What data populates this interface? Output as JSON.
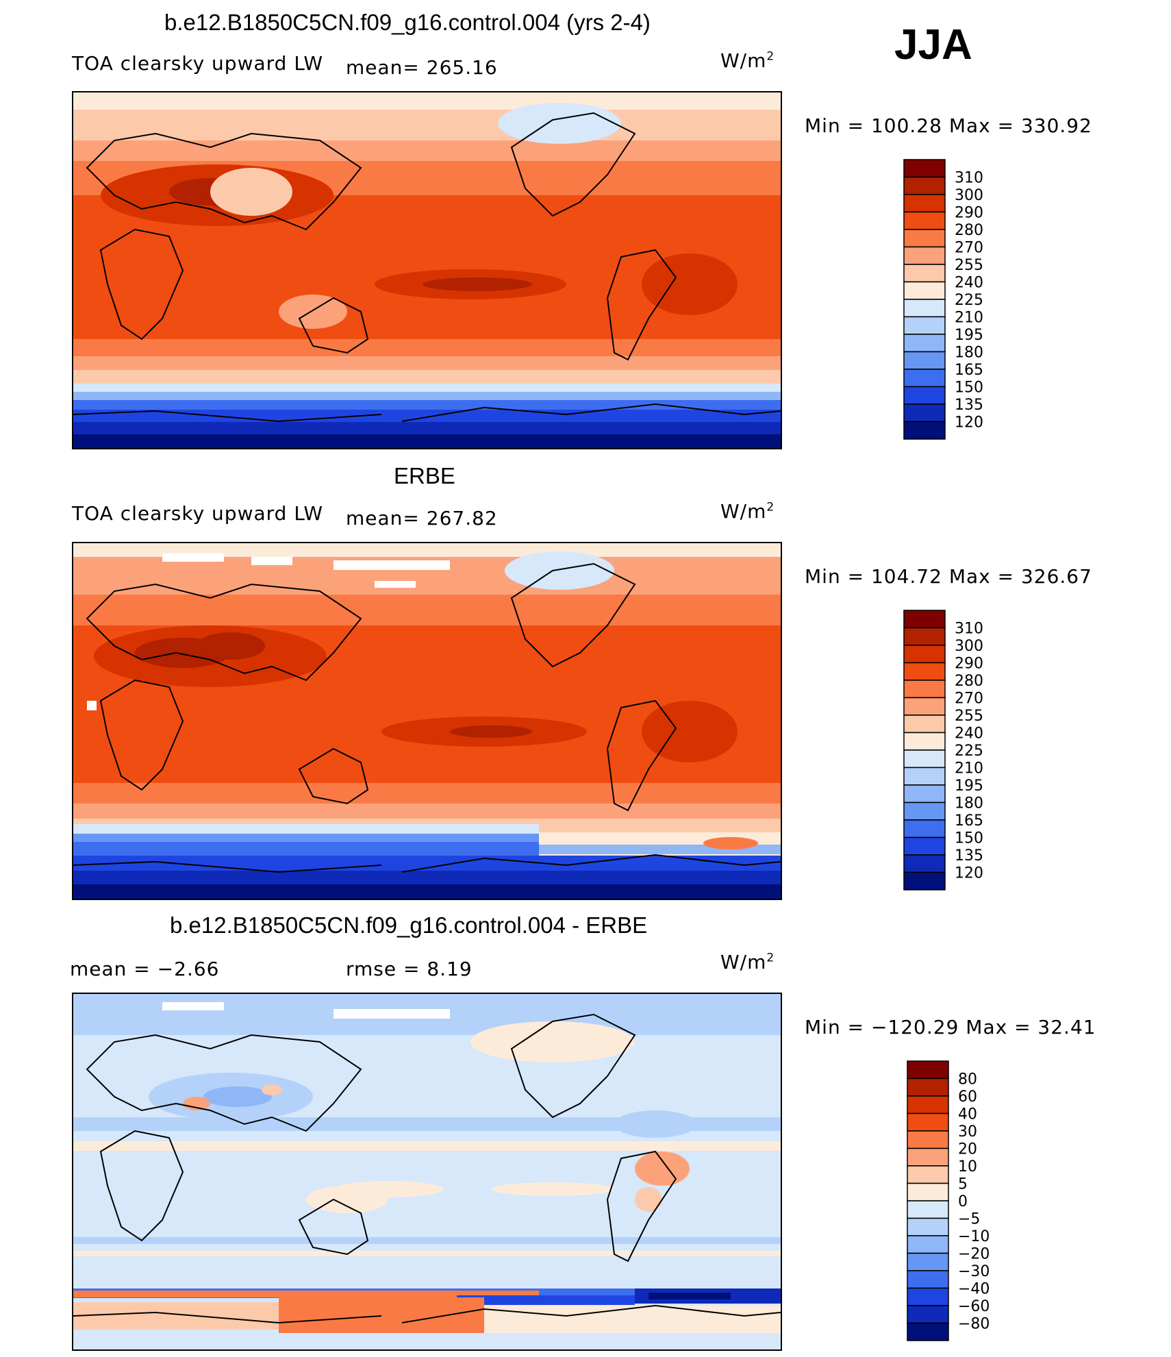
{
  "season": "JJA",
  "units": "W/m",
  "units_sup": "2",
  "panels": [
    {
      "title": "b.e12.B1850C5CN.f09_g16.control.004 (yrs 2-4)",
      "left_label": "TOA clearsky upward LW",
      "mean_label": "mean=  265.16",
      "minmax": "Min  =  100.28  Max  =  330.92"
    },
    {
      "title": "ERBE",
      "left_label": "TOA clearsky upward LW",
      "mean_label": "mean=  267.82",
      "minmax": "Min  =  104.72  Max  =  326.67"
    },
    {
      "title": "b.e12.B1850C5CN.f09_g16.control.004 - ERBE",
      "left_label": "mean  =    −2.66",
      "mean_label": "rmse  =     8.19",
      "minmax": "Min  =  −120.29  Max  =    32.41"
    }
  ],
  "legends": {
    "absolute": {
      "levels": [
        "310",
        "300",
        "290",
        "280",
        "270",
        "255",
        "240",
        "225",
        "210",
        "195",
        "180",
        "165",
        "150",
        "135",
        "120"
      ],
      "colors": [
        "#7f0000",
        "#b22100",
        "#d63300",
        "#f04d12",
        "#fa7a45",
        "#fca27a",
        "#fdc9ab",
        "#fdebd9",
        "#d6e8fa",
        "#b4d2f9",
        "#8fb6f7",
        "#6797f5",
        "#3d6ef0",
        "#1f45e0",
        "#0f2ab8",
        "#00107a"
      ]
    },
    "difference": {
      "levels": [
        "80",
        "60",
        "40",
        "30",
        "20",
        "10",
        "5",
        "0",
        "−5",
        "−10",
        "−20",
        "−30",
        "−40",
        "−60",
        "−80"
      ],
      "colors": [
        "#7f0000",
        "#b22100",
        "#d63300",
        "#f04d12",
        "#fa7a45",
        "#fca27a",
        "#fdc9ab",
        "#fdebd9",
        "#d6e8fa",
        "#b4d2f9",
        "#8fb6f7",
        "#6797f5",
        "#3d6ef0",
        "#1f45e0",
        "#0f2ab8",
        "#00107a"
      ]
    }
  }
}
